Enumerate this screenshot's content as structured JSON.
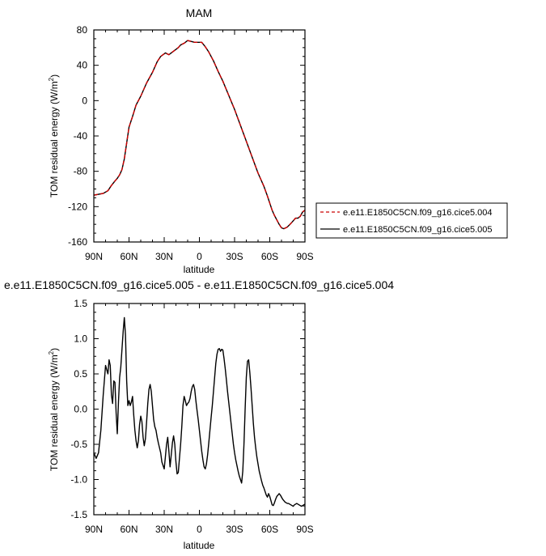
{
  "chart_data": [
    {
      "type": "line",
      "title": "MAM",
      "xlabel": "latitude",
      "ylabel": "TOM residual energy (W/m",
      "ylabel_sup": "2",
      "ylabel_close": ")",
      "xlim": [
        90,
        -90
      ],
      "ylim": [
        -160,
        80
      ],
      "xticks": [
        90,
        60,
        30,
        0,
        -30,
        -60,
        -90
      ],
      "xtick_labels": [
        "90N",
        "60N",
        "30N",
        "0",
        "30S",
        "60S",
        "90S"
      ],
      "yticks": [
        -160,
        -120,
        -80,
        -40,
        0,
        40,
        80
      ],
      "ytick_labels": [
        "-160",
        "-120",
        "-80",
        "-40",
        "0",
        "40",
        "80"
      ],
      "legend_position": "right-of-plot",
      "series": [
        {
          "name": "e.e11.E1850C5CN.f09_g16.cice5.004",
          "color": "#cc0000",
          "dash": true,
          "x": [
            90,
            86,
            82,
            78,
            75,
            72,
            70,
            68,
            66,
            64,
            62,
            60,
            57,
            54,
            50,
            45,
            40,
            36,
            33,
            31,
            29,
            26,
            23,
            20,
            18,
            16,
            13,
            10,
            7,
            4,
            1,
            -2,
            -5,
            -8,
            -12,
            -16,
            -20,
            -25,
            -30,
            -35,
            -40,
            -45,
            -50,
            -55,
            -58,
            -60,
            -62,
            -63,
            -64,
            -66,
            -68,
            -70,
            -72,
            -75,
            -78,
            -80,
            -82,
            -84,
            -86,
            -88,
            -90
          ],
          "y": [
            -107,
            -106,
            -105,
            -102,
            -96,
            -91,
            -88,
            -84,
            -78,
            -66,
            -48,
            -30,
            -18,
            -5,
            5,
            20,
            32,
            44,
            50,
            52,
            54,
            52,
            55,
            58,
            60,
            63,
            65,
            68,
            67,
            66,
            66,
            66,
            61,
            55,
            45,
            33,
            22,
            6,
            -10,
            -28,
            -46,
            -64,
            -82,
            -97,
            -108,
            -116,
            -124,
            -127,
            -130,
            -135,
            -140,
            -144,
            -145,
            -143,
            -139,
            -136,
            -133,
            -133,
            -131,
            -126,
            -124
          ]
        },
        {
          "name": "e.e11.E1850C5CN.f09_g16.cice5.005",
          "color": "#000000",
          "dash": false,
          "x": [
            90,
            86,
            82,
            78,
            75,
            72,
            70,
            68,
            66,
            64,
            62,
            60,
            57,
            54,
            50,
            45,
            40,
            36,
            33,
            31,
            29,
            26,
            23,
            20,
            18,
            16,
            13,
            10,
            7,
            4,
            1,
            -2,
            -5,
            -8,
            -12,
            -16,
            -20,
            -25,
            -30,
            -35,
            -40,
            -45,
            -50,
            -55,
            -58,
            -60,
            -62,
            -63,
            -64,
            -66,
            -68,
            -70,
            -72,
            -75,
            -78,
            -80,
            -82,
            -84,
            -86,
            -88,
            -90
          ],
          "y": [
            -107,
            -106,
            -105,
            -102,
            -96,
            -91,
            -88,
            -84,
            -78,
            -66,
            -48,
            -30,
            -18,
            -5,
            5,
            20,
            32,
            44,
            50,
            52,
            54,
            52,
            55,
            58,
            60,
            63,
            65,
            68,
            67,
            66,
            66,
            66,
            61,
            55,
            45,
            33,
            22,
            6,
            -10,
            -28,
            -46,
            -64,
            -82,
            -97,
            -108,
            -116,
            -124,
            -127,
            -130,
            -135,
            -140,
            -144,
            -145,
            -143,
            -139,
            -136,
            -133,
            -133,
            -131,
            -126,
            -124
          ]
        }
      ]
    },
    {
      "type": "line",
      "title": "e.e11.E1850C5CN.f09_g16.cice5.005 - e.e11.E1850C5CN.f09_g16.cice5.004",
      "xlabel": "latitude",
      "ylabel": "TOM residual energy (W/m",
      "ylabel_sup": "2",
      "ylabel_close": ")",
      "xlim": [
        90,
        -90
      ],
      "ylim": [
        -1.5,
        1.5
      ],
      "xticks": [
        90,
        60,
        30,
        0,
        -30,
        -60,
        -90
      ],
      "xtick_labels": [
        "90N",
        "60N",
        "30N",
        "0",
        "30S",
        "60S",
        "90S"
      ],
      "yticks": [
        -1.5,
        -1.0,
        -0.5,
        0.0,
        0.5,
        1.0,
        1.5
      ],
      "ytick_labels": [
        "-1.5",
        "-1.0",
        "-0.5",
        "0.0",
        "0.5",
        "1.0",
        "1.5"
      ],
      "series": [
        {
          "color": "#000000",
          "dash": false,
          "x": [
            90,
            88,
            86,
            84,
            82,
            80,
            78,
            77,
            76,
            75,
            74,
            73,
            72,
            71,
            70,
            69,
            68,
            67,
            66,
            65,
            64,
            63,
            62,
            61,
            60,
            59,
            58,
            57,
            56,
            55,
            54,
            53,
            52,
            51,
            50,
            49,
            48,
            47,
            46,
            45,
            44,
            43,
            42,
            41,
            40,
            39,
            38,
            37,
            36,
            35,
            34,
            33,
            32,
            31,
            30,
            29,
            28,
            27,
            26,
            25,
            24,
            23,
            22,
            21,
            20,
            19,
            18,
            17,
            16,
            15,
            14,
            13,
            12,
            11,
            10,
            9,
            8,
            7,
            6,
            5,
            4,
            3,
            2,
            1,
            0,
            -1,
            -2,
            -3,
            -4,
            -5,
            -6,
            -7,
            -8,
            -9,
            -10,
            -11,
            -12,
            -13,
            -14,
            -15,
            -16,
            -17,
            -18,
            -19,
            -20,
            -21,
            -22,
            -23,
            -24,
            -25,
            -26,
            -27,
            -28,
            -29,
            -30,
            -31,
            -32,
            -33,
            -34,
            -35,
            -36,
            -37,
            -38,
            -39,
            -40,
            -41,
            -42,
            -43,
            -44,
            -45,
            -46,
            -47,
            -48,
            -49,
            -50,
            -51,
            -52,
            -53,
            -54,
            -55,
            -56,
            -57,
            -58,
            -59,
            -60,
            -61,
            -62,
            -63,
            -64,
            -65,
            -66,
            -67,
            -68,
            -69,
            -70,
            -71,
            -72,
            -73,
            -74,
            -75,
            -76,
            -77,
            -78,
            -79,
            -80,
            -81,
            -82,
            -83,
            -84,
            -85,
            -86,
            -87,
            -88,
            -89,
            -90
          ],
          "y": [
            -0.62,
            -0.7,
            -0.62,
            -0.3,
            0.2,
            0.62,
            0.5,
            0.7,
            0.62,
            0.2,
            0.08,
            0.4,
            0.38,
            -0.05,
            -0.35,
            0.1,
            0.45,
            0.6,
            0.85,
            1.1,
            1.3,
            1.05,
            0.4,
            0.05,
            0.12,
            0.05,
            0.1,
            0.18,
            -0.08,
            -0.3,
            -0.45,
            -0.55,
            -0.45,
            -0.22,
            -0.1,
            -0.18,
            -0.4,
            -0.52,
            -0.42,
            -0.18,
            0.08,
            0.28,
            0.35,
            0.25,
            0.05,
            -0.15,
            -0.25,
            -0.3,
            -0.4,
            -0.48,
            -0.55,
            -0.62,
            -0.75,
            -0.8,
            -0.85,
            -0.68,
            -0.5,
            -0.4,
            -0.6,
            -0.82,
            -0.65,
            -0.48,
            -0.38,
            -0.5,
            -0.75,
            -0.92,
            -0.9,
            -0.7,
            -0.5,
            -0.25,
            0.05,
            0.18,
            0.12,
            0.05,
            0.08,
            0.1,
            0.15,
            0.25,
            0.32,
            0.35,
            0.28,
            0.12,
            -0.02,
            -0.15,
            -0.3,
            -0.45,
            -0.6,
            -0.72,
            -0.82,
            -0.85,
            -0.78,
            -0.65,
            -0.48,
            -0.3,
            -0.12,
            0.05,
            0.25,
            0.45,
            0.65,
            0.78,
            0.85,
            0.86,
            0.82,
            0.85,
            0.84,
            0.72,
            0.58,
            0.42,
            0.25,
            0.1,
            -0.05,
            -0.2,
            -0.35,
            -0.5,
            -0.62,
            -0.72,
            -0.8,
            -0.88,
            -0.95,
            -1.0,
            -1.05,
            -0.88,
            -0.5,
            0.0,
            0.45,
            0.68,
            0.7,
            0.52,
            0.3,
            0.05,
            -0.2,
            -0.4,
            -0.55,
            -0.68,
            -0.78,
            -0.88,
            -0.95,
            -1.02,
            -1.08,
            -1.12,
            -1.17,
            -1.22,
            -1.25,
            -1.2,
            -1.24,
            -1.3,
            -1.36,
            -1.37,
            -1.33,
            -1.28,
            -1.24,
            -1.22,
            -1.2,
            -1.22,
            -1.25,
            -1.28,
            -1.3,
            -1.32,
            -1.33,
            -1.34,
            -1.34,
            -1.35,
            -1.36,
            -1.37,
            -1.38,
            -1.36,
            -1.35,
            -1.34,
            -1.35,
            -1.36,
            -1.37,
            -1.38,
            -1.37,
            -1.36,
            -1.35
          ]
        }
      ]
    }
  ]
}
